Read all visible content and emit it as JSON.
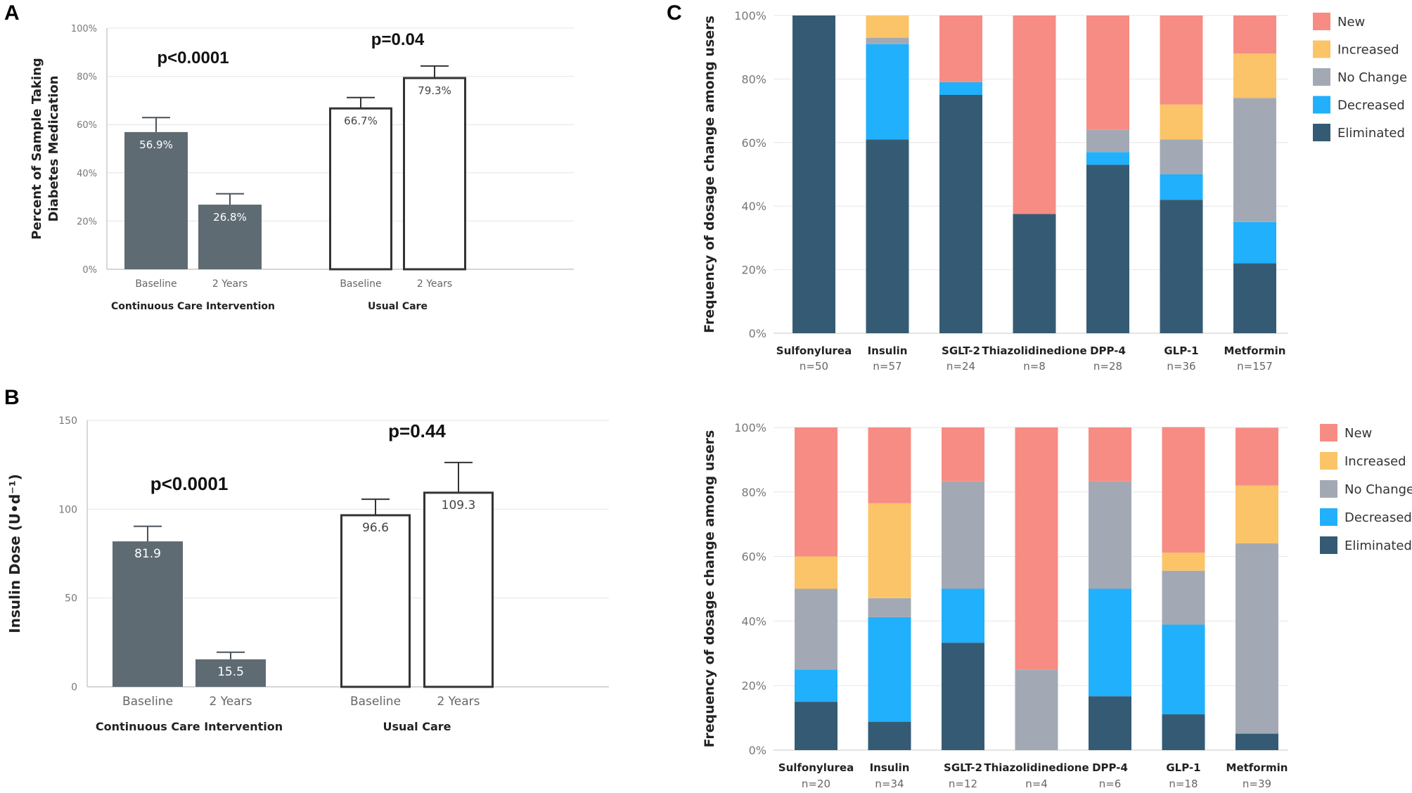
{
  "colors": {
    "filled_bar": "#5f6b73",
    "new": "#f78c84",
    "increased": "#fbc468",
    "no_change": "#a3a9b4",
    "decreased": "#21b0fb",
    "eliminated": "#355b74"
  },
  "chart_data": [
    {
      "id": "A",
      "panel_label": "A",
      "type": "bar",
      "ylabel_lines": [
        "Percent of Sample Taking",
        "Diabetes Medication"
      ],
      "ylim": [
        0,
        100
      ],
      "yticks": [
        "0%",
        "20%",
        "40%",
        "60%",
        "80%",
        "100%"
      ],
      "groups": [
        {
          "name": "Continuous Care Intervention",
          "pvalue": "p<0.0001",
          "fill": "filled",
          "bars": [
            {
              "category": "Baseline",
              "value": 56.9,
              "error": 6.0,
              "label": "56.9%"
            },
            {
              "category": "2 Years",
              "value": 26.8,
              "error": 4.5,
              "label": "26.8%"
            }
          ]
        },
        {
          "name": "Usual Care",
          "pvalue": "p=0.04",
          "fill": "open",
          "bars": [
            {
              "category": "Baseline",
              "value": 66.7,
              "error": 4.5,
              "label": "66.7%"
            },
            {
              "category": "2 Years",
              "value": 79.3,
              "error": 5.0,
              "label": "79.3%"
            }
          ]
        }
      ]
    },
    {
      "id": "B",
      "panel_label": "B",
      "type": "bar",
      "ylabel_lines": [
        "Insulin Dose (U•d⁻¹)"
      ],
      "ylim": [
        0,
        150
      ],
      "yticks": [
        "0",
        "50",
        "100",
        "150"
      ],
      "groups": [
        {
          "name": "Continuous Care Intervention",
          "pvalue": "p<0.0001",
          "fill": "filled",
          "bars": [
            {
              "category": "Baseline",
              "value": 81.9,
              "error": 8.5,
              "label": "81.9"
            },
            {
              "category": "2 Years",
              "value": 15.5,
              "error": 4.0,
              "label": "15.5"
            }
          ]
        },
        {
          "name": "Usual Care",
          "pvalue": "p=0.44",
          "fill": "open",
          "bars": [
            {
              "category": "Baseline",
              "value": 96.6,
              "error": 9.0,
              "label": "96.6"
            },
            {
              "category": "2 Years",
              "value": 109.3,
              "error": 17.0,
              "label": "109.3"
            }
          ]
        }
      ]
    },
    {
      "id": "C1",
      "panel_label": "C",
      "type": "stacked_bar",
      "ylabel": "Frequency of dosage change among users",
      "ylim": [
        0,
        100
      ],
      "yticks": [
        "0%",
        "20%",
        "40%",
        "60%",
        "80%",
        "100%"
      ],
      "series_names": [
        "New",
        "Increased",
        "No Change",
        "Decreased",
        "Eliminated"
      ],
      "series_keys": [
        "new",
        "increased",
        "no_change",
        "decreased",
        "eliminated"
      ],
      "categories": [
        {
          "name": "Sulfonylurea",
          "n": "n=50",
          "values": [
            0,
            0,
            0,
            0,
            100
          ]
        },
        {
          "name": "Insulin",
          "n": "n=57",
          "values": [
            0,
            7,
            2,
            30,
            61
          ]
        },
        {
          "name": "SGLT-2",
          "n": "n=24",
          "values": [
            21,
            0,
            0,
            4,
            75
          ]
        },
        {
          "name": "Thiazolidinedione",
          "n": "n=8",
          "values": [
            62.5,
            0,
            0,
            0,
            37.5
          ]
        },
        {
          "name": "DPP-4",
          "n": "n=28",
          "values": [
            36,
            0,
            7,
            4,
            53
          ]
        },
        {
          "name": "GLP-1",
          "n": "n=36",
          "values": [
            28,
            11,
            11,
            8,
            42
          ]
        },
        {
          "name": "Metformin",
          "n": "n=157",
          "values": [
            12,
            14,
            39,
            13,
            22
          ]
        }
      ]
    },
    {
      "id": "C2",
      "panel_label": "",
      "type": "stacked_bar",
      "ylabel": "Frequency of dosage change among users",
      "ylim": [
        0,
        100
      ],
      "yticks": [
        "0%",
        "20%",
        "40%",
        "60%",
        "80%",
        "100%"
      ],
      "series_names": [
        "New",
        "Increased",
        "No Change",
        "Decreased",
        "Eliminated"
      ],
      "series_keys": [
        "new",
        "increased",
        "no_change",
        "decreased",
        "eliminated"
      ],
      "categories": [
        {
          "name": "Sulfonylurea",
          "n": "n=20",
          "values": [
            40,
            10,
            25,
            10,
            15
          ]
        },
        {
          "name": "Insulin",
          "n": "n=34",
          "values": [
            23.5,
            29.4,
            5.9,
            32.4,
            8.8
          ]
        },
        {
          "name": "SGLT-2",
          "n": "n=12",
          "values": [
            16.7,
            0,
            33.3,
            16.7,
            33.3
          ]
        },
        {
          "name": "Thiazolidinedione",
          "n": "n=4",
          "values": [
            75,
            0,
            25,
            0,
            0
          ]
        },
        {
          "name": "DPP-4",
          "n": "n=6",
          "values": [
            16.7,
            0,
            33.3,
            33.3,
            16.7
          ]
        },
        {
          "name": "GLP-1",
          "n": "n=18",
          "values": [
            38.9,
            5.6,
            16.7,
            27.8,
            11.1
          ]
        },
        {
          "name": "Metformin",
          "n": "n=39",
          "values": [
            17.9,
            17.9,
            59,
            0,
            5.1
          ]
        }
      ]
    }
  ]
}
